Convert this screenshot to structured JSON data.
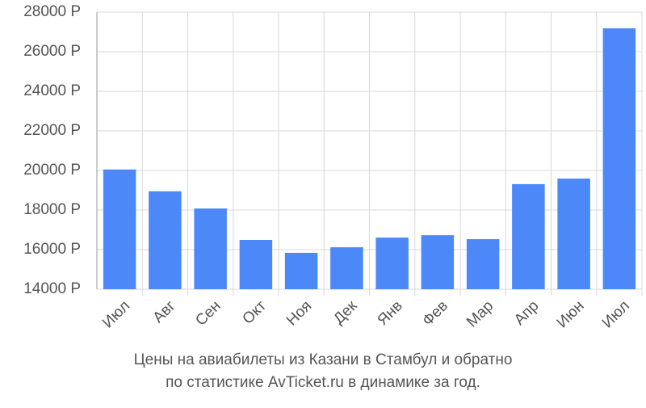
{
  "chart_data": {
    "type": "bar",
    "title_lines": [
      "Цены на авиабилеты из Казани в Стамбул и обратно",
      "по статистике AvTicket.ru в динамике за год."
    ],
    "categories": [
      "Июл",
      "Авг",
      "Сен",
      "Окт",
      "Ноя",
      "Дек",
      "Янв",
      "Фев",
      "Мар",
      "Апр",
      "Июн",
      "Июл"
    ],
    "values": [
      20050,
      18950,
      18080,
      16490,
      15840,
      16120,
      16610,
      16730,
      16530,
      19310,
      19590,
      27180
    ],
    "color": "#4d88f8",
    "ylim": [
      14000,
      28000
    ],
    "yticks": [
      {
        "value": 14000,
        "label": "14000 Р"
      },
      {
        "value": 16000,
        "label": "16000 Р"
      },
      {
        "value": 18000,
        "label": "18000 Р"
      },
      {
        "value": 20000,
        "label": "20000 Р"
      },
      {
        "value": 22000,
        "label": "22000 Р"
      },
      {
        "value": 24000,
        "label": "24000 Р"
      },
      {
        "value": 26000,
        "label": "26000 Р"
      },
      {
        "value": 28000,
        "label": "28000 Р"
      }
    ],
    "grid": true
  }
}
